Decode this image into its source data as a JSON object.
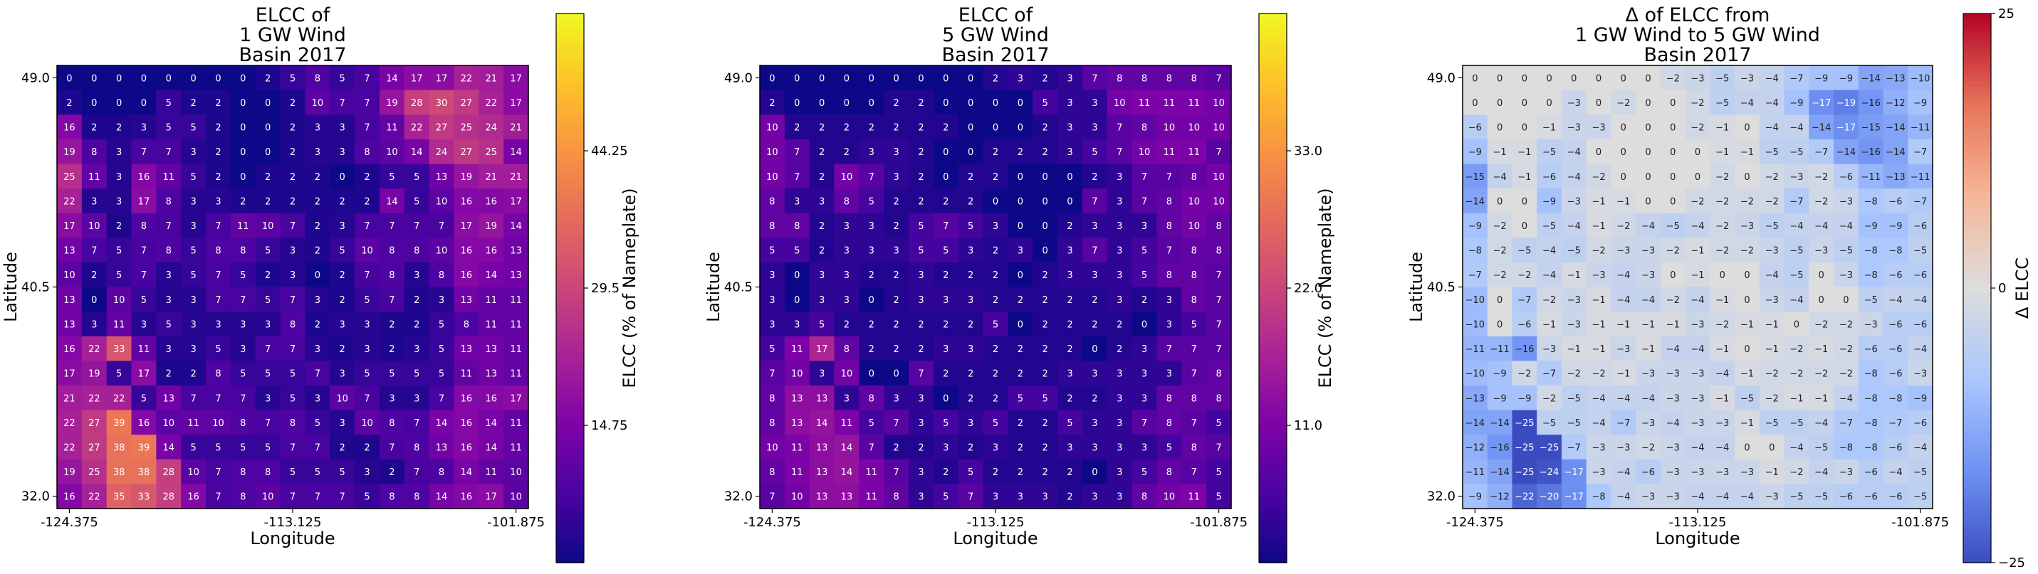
{
  "chart_data": [
    {
      "type": "heatmap",
      "title_lines": [
        "ELCC of",
        "1 GW Wind",
        "Basin 2017"
      ],
      "xlabel": "Longitude",
      "ylabel": "Latitude",
      "x_ticks": [
        "-124.375",
        "-113.125",
        "-101.875"
      ],
      "y_ticks": [
        "49.0",
        "40.5",
        "32.0"
      ],
      "colormap": "plasma",
      "vmin": 0,
      "vmax": 59,
      "colorbar_label": "ELCC (% of Nameplate)",
      "colorbar_ticks": [
        {
          "value": 14.75,
          "label": "14.75"
        },
        {
          "value": 29.5,
          "label": "29.5"
        },
        {
          "value": 44.25,
          "label": "44.25"
        }
      ],
      "values": [
        [
          0,
          0,
          0,
          0,
          0,
          0,
          0,
          0,
          2,
          5,
          8,
          5,
          7,
          14,
          17,
          17,
          22,
          21,
          17
        ],
        [
          2,
          0,
          0,
          0,
          5,
          2,
          2,
          0,
          0,
          2,
          10,
          7,
          7,
          19,
          28,
          30,
          27,
          22,
          17
        ],
        [
          16,
          2,
          2,
          3,
          5,
          5,
          2,
          0,
          0,
          2,
          3,
          3,
          7,
          11,
          22,
          27,
          25,
          24,
          21
        ],
        [
          19,
          8,
          3,
          7,
          7,
          3,
          2,
          0,
          0,
          2,
          3,
          3,
          8,
          10,
          14,
          24,
          27,
          25,
          14
        ],
        [
          25,
          11,
          3,
          16,
          11,
          5,
          2,
          0,
          2,
          2,
          2,
          0,
          2,
          5,
          5,
          13,
          19,
          21,
          21
        ],
        [
          22,
          3,
          3,
          17,
          8,
          3,
          3,
          2,
          2,
          2,
          2,
          2,
          2,
          14,
          5,
          10,
          16,
          16,
          17
        ],
        [
          17,
          10,
          2,
          8,
          7,
          3,
          7,
          11,
          10,
          7,
          2,
          3,
          7,
          7,
          7,
          7,
          17,
          19,
          14
        ],
        [
          13,
          7,
          5,
          7,
          8,
          5,
          8,
          8,
          5,
          3,
          2,
          5,
          10,
          8,
          8,
          10,
          16,
          16,
          13
        ],
        [
          10,
          2,
          5,
          7,
          3,
          5,
          7,
          5,
          2,
          3,
          0,
          2,
          7,
          8,
          3,
          8,
          16,
          14,
          13
        ],
        [
          13,
          0,
          10,
          5,
          3,
          3,
          7,
          7,
          5,
          7,
          3,
          2,
          5,
          7,
          2,
          3,
          13,
          11,
          11
        ],
        [
          13,
          3,
          11,
          3,
          5,
          3,
          3,
          3,
          3,
          8,
          2,
          3,
          3,
          2,
          2,
          5,
          8,
          11,
          11
        ],
        [
          16,
          22,
          33,
          11,
          3,
          3,
          5,
          3,
          7,
          7,
          3,
          2,
          3,
          2,
          3,
          5,
          13,
          13,
          11
        ],
        [
          17,
          19,
          5,
          17,
          2,
          2,
          8,
          5,
          5,
          5,
          7,
          3,
          5,
          5,
          5,
          5,
          11,
          13,
          11
        ],
        [
          21,
          22,
          22,
          5,
          13,
          7,
          7,
          7,
          3,
          5,
          3,
          10,
          7,
          3,
          3,
          7,
          16,
          16,
          17
        ],
        [
          22,
          27,
          39,
          16,
          10,
          11,
          10,
          8,
          7,
          8,
          5,
          3,
          10,
          8,
          7,
          14,
          16,
          14,
          11
        ],
        [
          22,
          27,
          38,
          39,
          14,
          5,
          5,
          5,
          5,
          7,
          7,
          2,
          2,
          7,
          8,
          13,
          16,
          14,
          11
        ],
        [
          19,
          25,
          38,
          38,
          28,
          10,
          7,
          8,
          8,
          5,
          5,
          5,
          3,
          2,
          7,
          8,
          14,
          11,
          10
        ],
        [
          16,
          22,
          35,
          33,
          28,
          16,
          7,
          8,
          10,
          7,
          7,
          7,
          5,
          8,
          8,
          14,
          16,
          17,
          10
        ]
      ]
    },
    {
      "type": "heatmap",
      "title_lines": [
        "ELCC of",
        "5 GW Wind",
        "Basin 2017"
      ],
      "xlabel": "Longitude",
      "ylabel": "Latitude",
      "x_ticks": [
        "-124.375",
        "-113.125",
        "-101.875"
      ],
      "y_ticks": [
        "49.0",
        "40.5",
        "32.0"
      ],
      "colormap": "plasma",
      "vmin": 0,
      "vmax": 44,
      "colorbar_label": "ELCC (% of Nameplate)",
      "colorbar_ticks": [
        {
          "value": 11.0,
          "label": "11.0"
        },
        {
          "value": 22.0,
          "label": "22.0"
        },
        {
          "value": 33.0,
          "label": "33.0"
        }
      ],
      "values": [
        [
          0,
          0,
          0,
          0,
          0,
          0,
          0,
          0,
          0,
          2,
          3,
          2,
          3,
          7,
          8,
          8,
          8,
          8,
          7
        ],
        [
          2,
          0,
          0,
          0,
          0,
          2,
          2,
          0,
          0,
          0,
          0,
          5,
          3,
          3,
          10,
          11,
          11,
          11,
          10
        ],
        [
          10,
          2,
          2,
          2,
          2,
          2,
          2,
          2,
          0,
          0,
          0,
          2,
          3,
          3,
          7,
          8,
          10,
          10,
          10
        ],
        [
          10,
          7,
          2,
          2,
          3,
          3,
          2,
          0,
          0,
          2,
          2,
          2,
          3,
          5,
          7,
          10,
          11,
          11,
          7
        ],
        [
          10,
          7,
          2,
          10,
          7,
          3,
          2,
          0,
          2,
          2,
          0,
          0,
          0,
          2,
          3,
          7,
          7,
          8,
          10
        ],
        [
          8,
          3,
          3,
          8,
          5,
          2,
          2,
          2,
          2,
          0,
          0,
          0,
          0,
          7,
          3,
          7,
          8,
          10,
          10
        ],
        [
          8,
          8,
          2,
          3,
          3,
          2,
          5,
          7,
          5,
          3,
          0,
          0,
          2,
          3,
          3,
          3,
          8,
          10,
          8
        ],
        [
          5,
          5,
          2,
          3,
          3,
          3,
          5,
          5,
          3,
          2,
          3,
          0,
          3,
          7,
          3,
          5,
          7,
          8,
          8
        ],
        [
          3,
          0,
          3,
          3,
          2,
          2,
          3,
          2,
          2,
          2,
          0,
          2,
          3,
          3,
          3,
          5,
          8,
          8,
          7
        ],
        [
          3,
          0,
          3,
          3,
          0,
          2,
          3,
          3,
          3,
          2,
          2,
          2,
          2,
          2,
          3,
          2,
          3,
          8,
          7
        ],
        [
          3,
          3,
          5,
          2,
          2,
          2,
          2,
          2,
          2,
          5,
          0,
          2,
          2,
          2,
          2,
          0,
          3,
          5,
          7
        ],
        [
          5,
          11,
          17,
          8,
          2,
          2,
          2,
          3,
          3,
          2,
          2,
          2,
          2,
          0,
          2,
          3,
          7,
          7,
          7
        ],
        [
          7,
          10,
          3,
          10,
          0,
          0,
          7,
          2,
          2,
          2,
          2,
          2,
          3,
          3,
          3,
          3,
          3,
          7,
          8
        ],
        [
          8,
          13,
          13,
          3,
          8,
          3,
          3,
          0,
          2,
          2,
          5,
          5,
          2,
          2,
          3,
          3,
          8,
          8,
          8
        ],
        [
          8,
          13,
          14,
          11,
          5,
          7,
          3,
          5,
          3,
          5,
          2,
          2,
          5,
          3,
          3,
          7,
          8,
          7,
          5
        ],
        [
          10,
          11,
          13,
          14,
          7,
          2,
          2,
          3,
          2,
          3,
          2,
          2,
          3,
          3,
          3,
          3,
          5,
          8,
          7
        ],
        [
          8,
          11,
          13,
          14,
          11,
          7,
          3,
          2,
          5,
          2,
          2,
          2,
          2,
          0,
          3,
          5,
          8,
          7,
          5
        ],
        [
          7,
          10,
          13,
          13,
          11,
          8,
          3,
          5,
          7,
          3,
          3,
          3,
          2,
          3,
          3,
          8,
          10,
          11,
          5
        ]
      ]
    },
    {
      "type": "heatmap",
      "title_lines": [
        "Δ of ELCC from",
        "1 GW Wind to 5 GW Wind",
        "Basin 2017"
      ],
      "xlabel": "Longitude",
      "ylabel": "Latitude",
      "x_ticks": [
        "-124.375",
        "-113.125",
        "-101.875"
      ],
      "y_ticks": [
        "49.0",
        "40.5",
        "32.0"
      ],
      "colormap": "coolwarm",
      "vmin": -25,
      "vmax": 25,
      "colorbar_label": "Δ ELCC",
      "colorbar_ticks": [
        {
          "value": -25,
          "label": "−25"
        },
        {
          "value": 0,
          "label": "0"
        },
        {
          "value": 25,
          "label": "25"
        }
      ],
      "values": [
        [
          0,
          0,
          0,
          0,
          0,
          0,
          0,
          0,
          -2,
          -3,
          -5,
          -3,
          -4,
          -7,
          -9,
          -9,
          -14,
          -13,
          -10
        ],
        [
          0,
          0,
          0,
          0,
          -3,
          0,
          -2,
          0,
          0,
          -2,
          -5,
          -4,
          -4,
          -9,
          -17,
          -19,
          -16,
          -12,
          -9
        ],
        [
          -6,
          0,
          0,
          -1,
          -3,
          -3,
          0,
          0,
          0,
          -2,
          -1,
          0,
          -4,
          -4,
          -14,
          -17,
          -15,
          -14,
          -11
        ],
        [
          -9,
          -1,
          -1,
          -5,
          -4,
          0,
          0,
          0,
          0,
          0,
          -1,
          -1,
          -5,
          -5,
          -7,
          -14,
          -16,
          -14,
          -7
        ],
        [
          -15,
          -4,
          -1,
          -6,
          -4,
          -2,
          0,
          0,
          0,
          0,
          -2,
          0,
          -2,
          -3,
          -2,
          -6,
          -11,
          -13,
          -11
        ],
        [
          -14,
          0,
          0,
          -9,
          -3,
          -1,
          -1,
          0,
          0,
          -2,
          -2,
          -2,
          -2,
          -7,
          -2,
          -3,
          -8,
          -6,
          -7
        ],
        [
          -9,
          -2,
          0,
          -5,
          -4,
          -1,
          -2,
          -4,
          -5,
          -4,
          -2,
          -3,
          -5,
          -4,
          -4,
          -4,
          -9,
          -9,
          -6
        ],
        [
          -8,
          -2,
          -5,
          -4,
          -5,
          -2,
          -3,
          -3,
          -2,
          -1,
          -2,
          -2,
          -3,
          -5,
          -3,
          -5,
          -8,
          -8,
          -5
        ],
        [
          -7,
          -2,
          -2,
          -4,
          -1,
          -3,
          -4,
          -3,
          0,
          -1,
          0,
          0,
          -4,
          -5,
          0,
          -3,
          -8,
          -6,
          -6
        ],
        [
          -10,
          0,
          -7,
          -2,
          -3,
          -1,
          -4,
          -4,
          -2,
          -4,
          -1,
          0,
          -3,
          -4,
          0,
          0,
          -5,
          -4,
          -4
        ],
        [
          -10,
          0,
          -6,
          -1,
          -3,
          -1,
          -1,
          -1,
          -1,
          -3,
          -2,
          -1,
          -1,
          0,
          -2,
          -2,
          -3,
          -6,
          -6
        ],
        [
          -11,
          -11,
          -16,
          -3,
          -1,
          -1,
          -3,
          -1,
          -4,
          -4,
          -1,
          0,
          -1,
          -2,
          -1,
          -2,
          -6,
          -6,
          -4
        ],
        [
          -10,
          -9,
          -2,
          -7,
          -2,
          -2,
          -1,
          -3,
          -3,
          -3,
          -4,
          -1,
          -2,
          -2,
          -2,
          -2,
          -8,
          -6,
          -3
        ],
        [
          -13,
          -9,
          -9,
          -2,
          -5,
          -4,
          -4,
          -4,
          -3,
          -3,
          -1,
          -5,
          -2,
          -1,
          -1,
          -4,
          -8,
          -8,
          -9
        ],
        [
          -14,
          -14,
          -25,
          -5,
          -5,
          -4,
          -7,
          -3,
          -4,
          -3,
          -3,
          -1,
          -5,
          -5,
          -4,
          -7,
          -8,
          -7,
          -6
        ],
        [
          -12,
          -16,
          -25,
          -25,
          -7,
          -3,
          -3,
          -2,
          -3,
          -4,
          -4,
          0,
          0,
          -4,
          -5,
          -8,
          -8,
          -6,
          -4
        ],
        [
          -11,
          -14,
          -25,
          -24,
          -17,
          -3,
          -4,
          -6,
          -3,
          -3,
          -3,
          -3,
          -1,
          -2,
          -4,
          -3,
          -6,
          -4,
          -5
        ],
        [
          -9,
          -12,
          -22,
          -20,
          -17,
          -8,
          -4,
          -3,
          -3,
          -4,
          -4,
          -4,
          -3,
          -5,
          -5,
          -6,
          -6,
          -6,
          -5
        ]
      ]
    }
  ]
}
